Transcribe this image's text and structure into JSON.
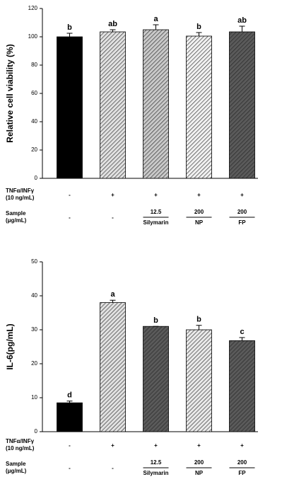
{
  "chart_data": [
    {
      "type": "bar",
      "ylabel": "Relative cell viability (%)",
      "values": [
        100,
        103.5,
        105,
        100.5,
        103.5
      ],
      "errors": [
        2.5,
        1.5,
        3.5,
        2.5,
        4
      ],
      "letters": [
        "b",
        "ab",
        "a",
        "b",
        "ab"
      ],
      "bar_colors": [
        "#000000",
        "#e0e0e0",
        "#c8c8c8",
        "#f0f0f0",
        "#5a5a5a"
      ],
      "hatched": [
        false,
        true,
        true,
        true,
        true
      ],
      "ylim": [
        0,
        120
      ],
      "yticks": [
        0,
        20,
        40,
        60,
        80,
        100,
        120
      ],
      "treatment_rows": [
        {
          "label": [
            "TNFα/INFγ",
            "(10 ng/mL)"
          ],
          "cells": [
            "-",
            "+",
            "+",
            "+",
            "+"
          ]
        },
        {
          "label": [
            "Sample",
            "(μg/mL)"
          ],
          "cells": [
            "-",
            "-",
            {
              "value": "12.5",
              "name": "Silymarin"
            },
            {
              "value": "200",
              "name": "NP"
            },
            {
              "value": "200",
              "name": "FP"
            }
          ]
        }
      ]
    },
    {
      "type": "bar",
      "ylabel": "IL-6(pg/mL)",
      "values": [
        8.5,
        38,
        31,
        30,
        26.8
      ],
      "errors": [
        0.5,
        0.7,
        0,
        1.3,
        0.9
      ],
      "letters": [
        "d",
        "a",
        "b",
        "b",
        "c"
      ],
      "bar_colors": [
        "#000000",
        "#e0e0e0",
        "#5a5a5a",
        "#e8e8e8",
        "#5a5a5a"
      ],
      "hatched": [
        false,
        true,
        true,
        true,
        true
      ],
      "ylim": [
        0,
        50
      ],
      "yticks": [
        0,
        10,
        20,
        30,
        40,
        50
      ],
      "treatment_rows": [
        {
          "label": [
            "TNFα/INFγ",
            "(10 ng/mL)"
          ],
          "cells": [
            "-",
            "+",
            "+",
            "+",
            "+"
          ]
        },
        {
          "label": [
            "Sample",
            "(μg/mL)"
          ],
          "cells": [
            "-",
            "-",
            {
              "value": "12.5",
              "name": "Silymarin"
            },
            {
              "value": "200",
              "name": "NP"
            },
            {
              "value": "200",
              "name": "FP"
            }
          ]
        }
      ]
    }
  ]
}
